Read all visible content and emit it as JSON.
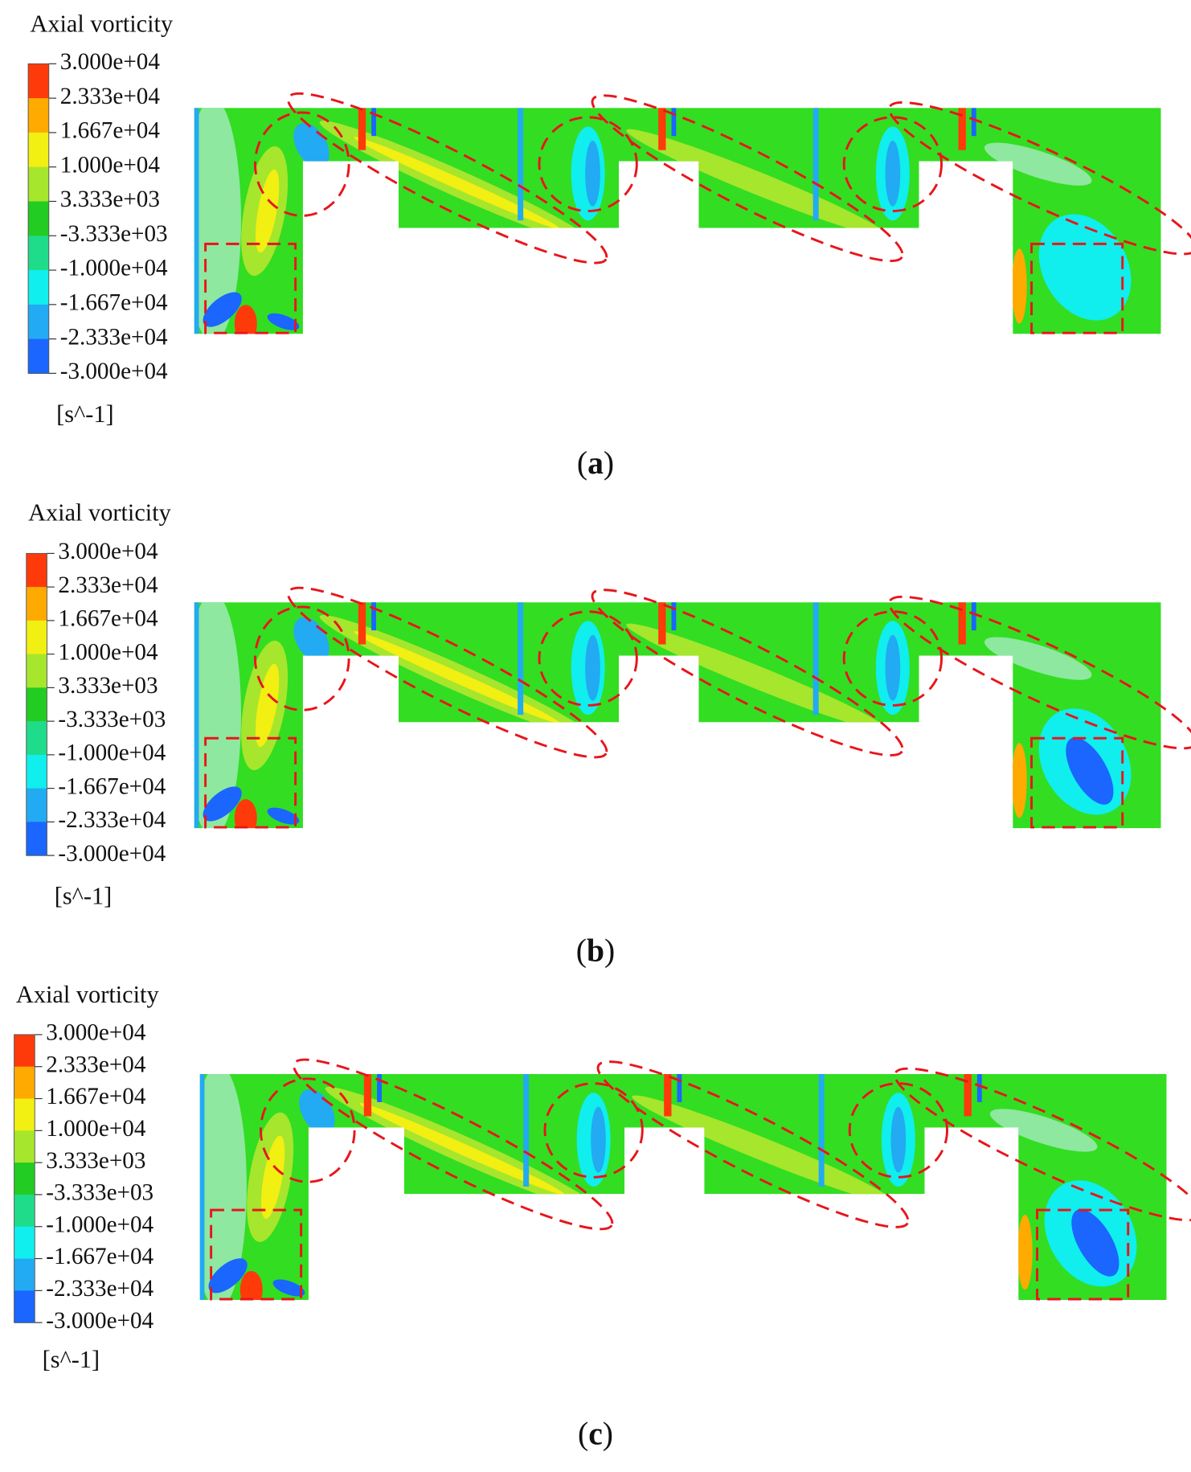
{
  "panels": [
    {
      "legend_title": "Axial vorticity",
      "legend_labels": [
        "3.000e+04",
        "2.333e+04",
        "1.667e+04",
        "1.000e+04",
        "3.333e+03",
        "-3.333e+03",
        "-1.000e+04",
        "-1.667e+04",
        "-2.333e+04",
        "-3.000e+04"
      ],
      "unit": "[s^-1]",
      "caption": [
        "(",
        "a",
        ")"
      ]
    },
    {
      "legend_title": "Axial vorticity",
      "legend_labels": [
        "3.000e+04",
        "2.333e+04",
        "1.667e+04",
        "1.000e+04",
        "3.333e+03",
        "-3.333e+03",
        "-1.000e+04",
        "-1.667e+04",
        "-2.333e+04",
        "-3.000e+04"
      ],
      "unit": "[s^-1]",
      "caption": [
        "(",
        "b",
        ")"
      ]
    },
    {
      "legend_title": "Axial vorticity",
      "legend_labels": [
        "3.000e+04",
        "2.333e+04",
        "1.667e+04",
        "1.000e+04",
        "3.333e+03",
        "-3.333e+03",
        "-1.000e+04",
        "-1.667e+04",
        "-2.333e+04",
        "-3.000e+04"
      ],
      "unit": "[s^-1]",
      "caption": [
        "(",
        "c",
        ")"
      ]
    }
  ]
}
